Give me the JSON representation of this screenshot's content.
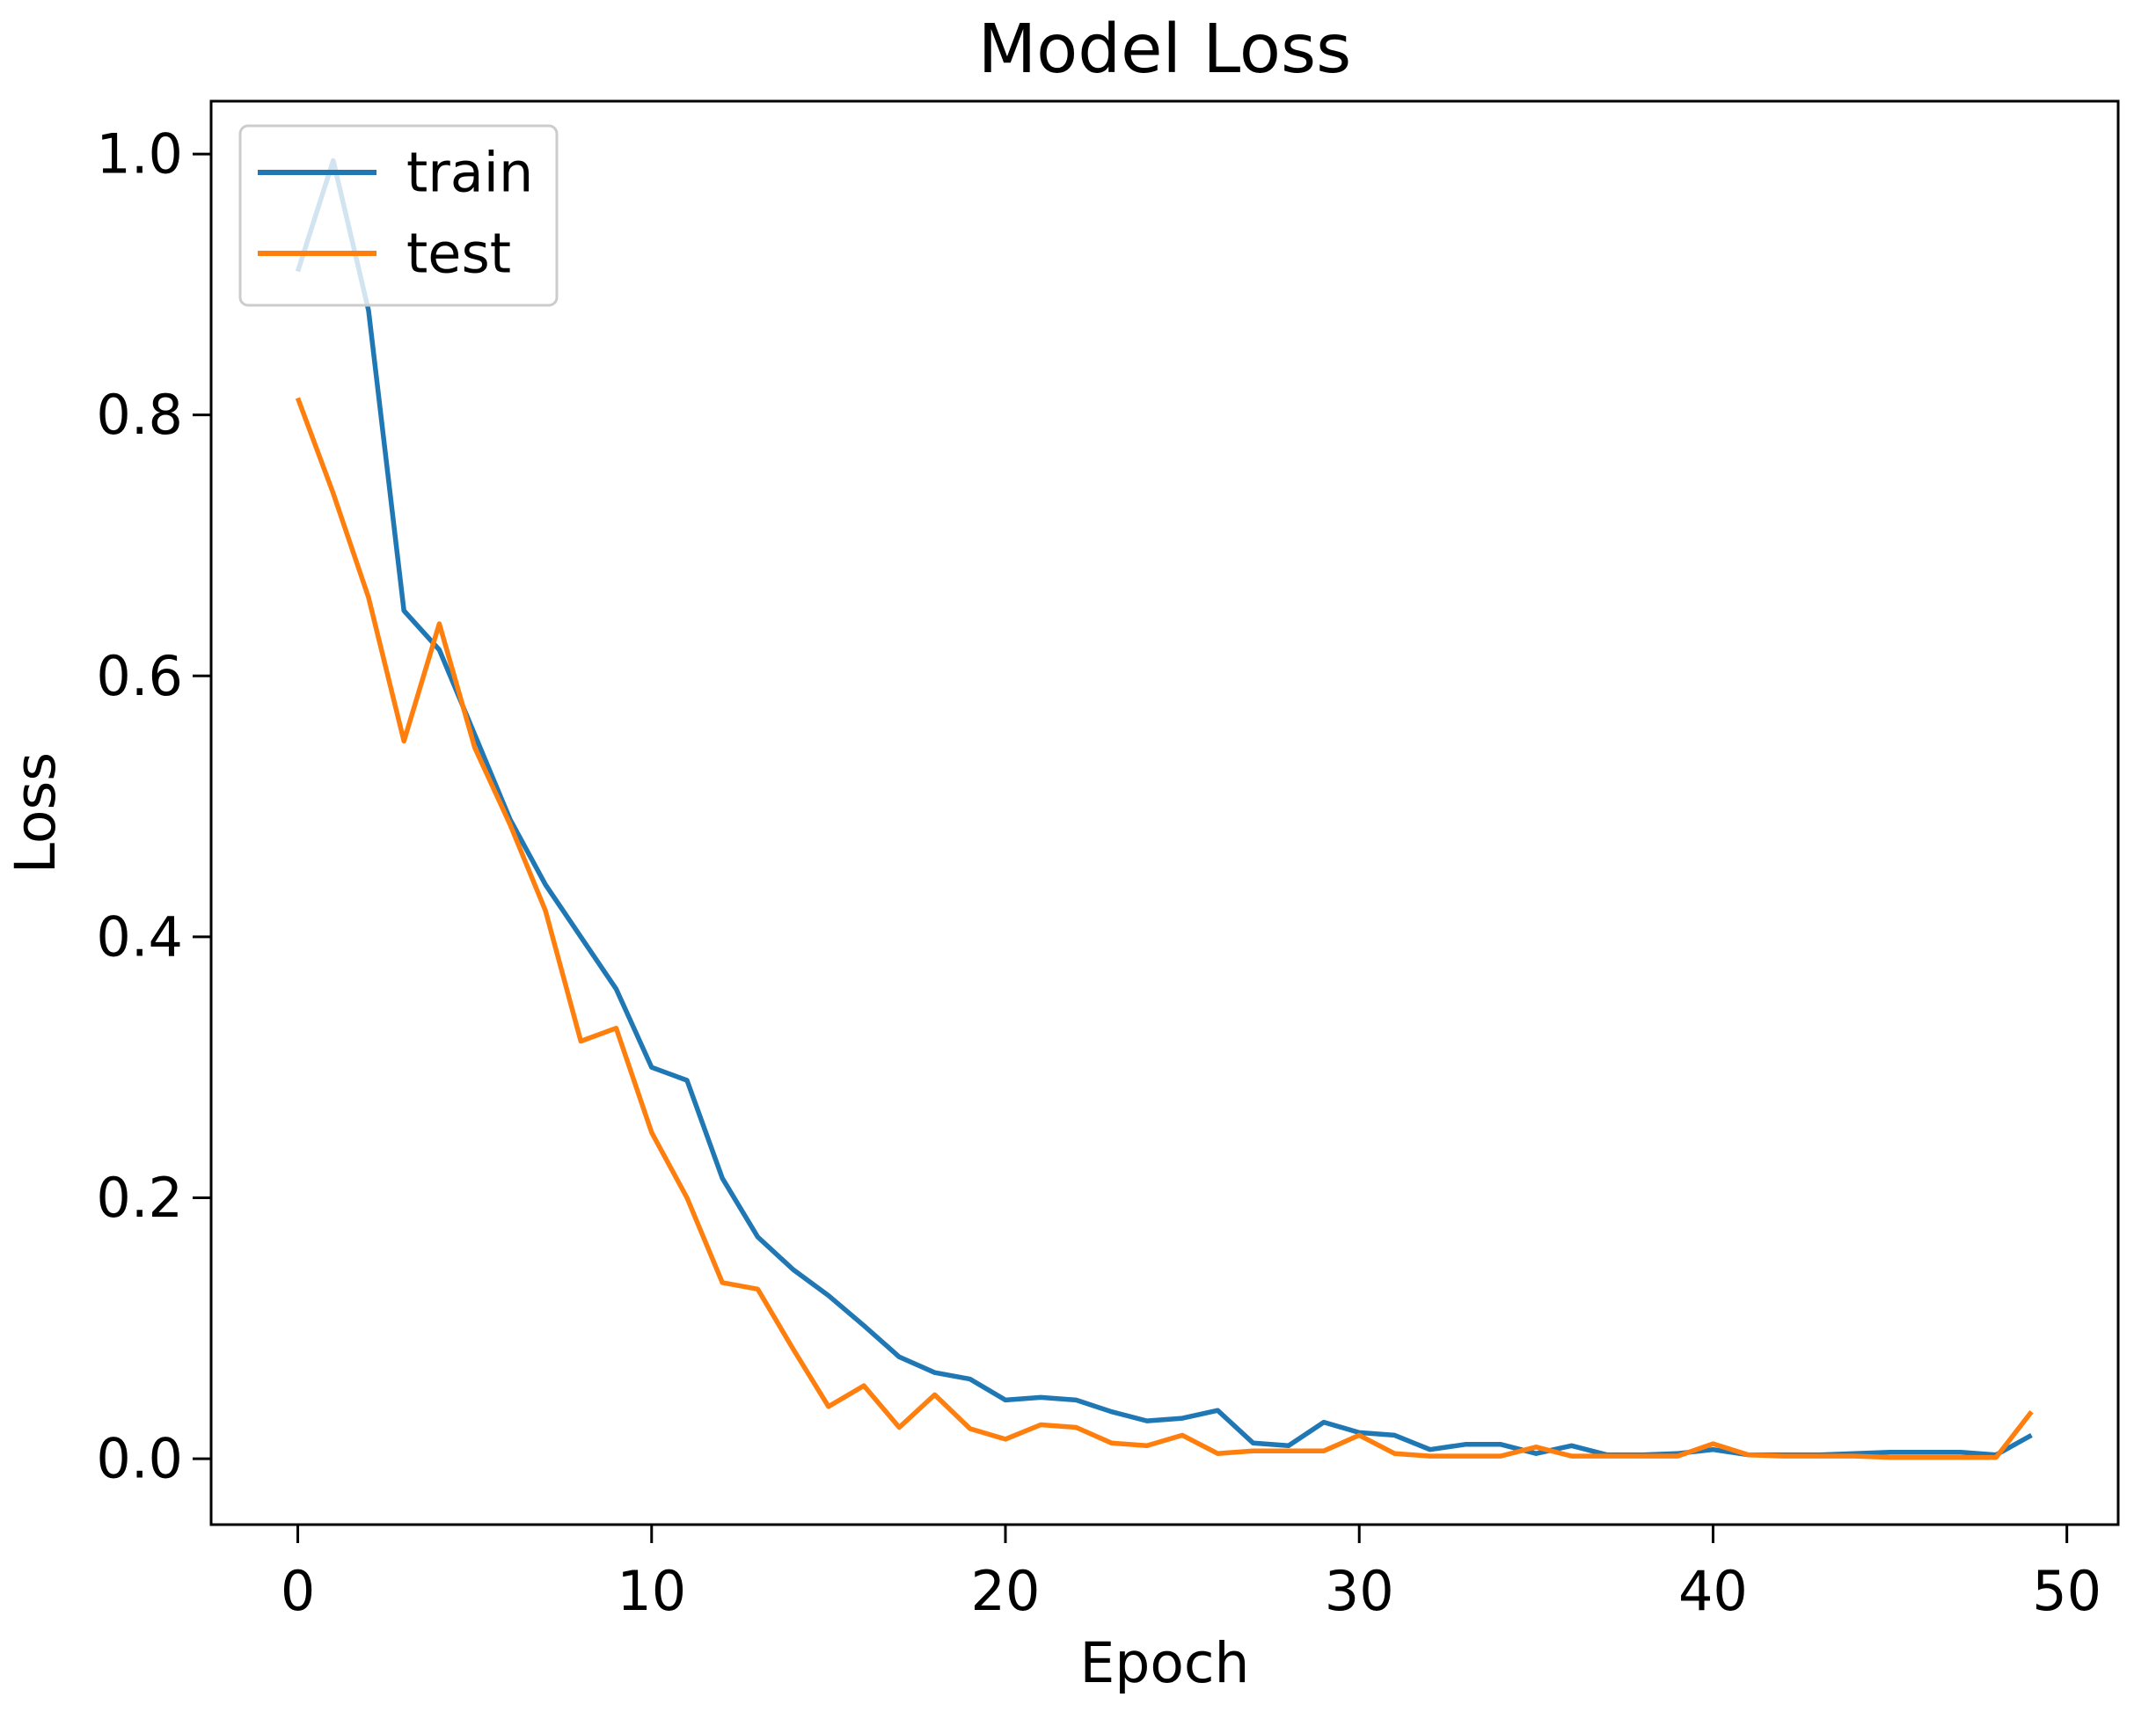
{
  "chart_data": {
    "type": "line",
    "title": "Model Loss",
    "xlabel": "Epoch",
    "ylabel": "Loss",
    "grid": false,
    "legend": {
      "position": "upper-left",
      "items": [
        "train",
        "test"
      ]
    },
    "xlim": [
      -2.45,
      51.45
    ],
    "ylim": [
      -0.0505,
      1.0405
    ],
    "x_ticks": {
      "values": [
        0,
        10,
        20,
        30,
        40,
        50
      ],
      "labels": [
        "0",
        "10",
        "20",
        "30",
        "40",
        "50"
      ]
    },
    "y_ticks": {
      "values": [
        0.0,
        0.2,
        0.4,
        0.6,
        0.8,
        1.0
      ],
      "labels": [
        "0.0",
        "0.2",
        "0.4",
        "0.6",
        "0.8",
        "1.0"
      ]
    },
    "x": [
      0,
      1,
      2,
      3,
      4,
      5,
      6,
      7,
      8,
      9,
      10,
      11,
      12,
      13,
      14,
      15,
      16,
      17,
      18,
      19,
      20,
      21,
      22,
      23,
      24,
      25,
      26,
      27,
      28,
      29,
      30,
      31,
      32,
      33,
      34,
      35,
      36,
      37,
      38,
      39,
      40,
      41,
      42,
      43,
      44,
      45,
      46,
      47,
      48,
      49
    ],
    "series": [
      {
        "name": "train",
        "color": "#1f77b4",
        "values": [
          0.91,
          0.995,
          0.88,
          0.65,
          0.62,
          0.555,
          0.49,
          0.44,
          0.4,
          0.36,
          0.3,
          0.29,
          0.215,
          0.17,
          0.145,
          0.125,
          0.102,
          0.078,
          0.066,
          0.061,
          0.045,
          0.047,
          0.045,
          0.036,
          0.029,
          0.031,
          0.037,
          0.012,
          0.01,
          0.028,
          0.02,
          0.018,
          0.007,
          0.011,
          0.011,
          0.004,
          0.01,
          0.003,
          0.003,
          0.004,
          0.007,
          0.003,
          0.003,
          0.003,
          0.004,
          0.005,
          0.005,
          0.005,
          0.003,
          0.018
        ]
      },
      {
        "name": "test",
        "color": "#ff7f0e",
        "values": [
          0.813,
          0.74,
          0.66,
          0.55,
          0.64,
          0.545,
          0.486,
          0.42,
          0.32,
          0.33,
          0.25,
          0.2,
          0.135,
          0.13,
          0.084,
          0.04,
          0.056,
          0.024,
          0.049,
          0.023,
          0.015,
          0.026,
          0.024,
          0.012,
          0.01,
          0.018,
          0.004,
          0.006,
          0.006,
          0.006,
          0.018,
          0.004,
          0.002,
          0.002,
          0.002,
          0.009,
          0.002,
          0.002,
          0.002,
          0.002,
          0.0115,
          0.003,
          0.002,
          0.002,
          0.002,
          0.001,
          0.001,
          0.001,
          0.001,
          0.036
        ]
      }
    ]
  }
}
